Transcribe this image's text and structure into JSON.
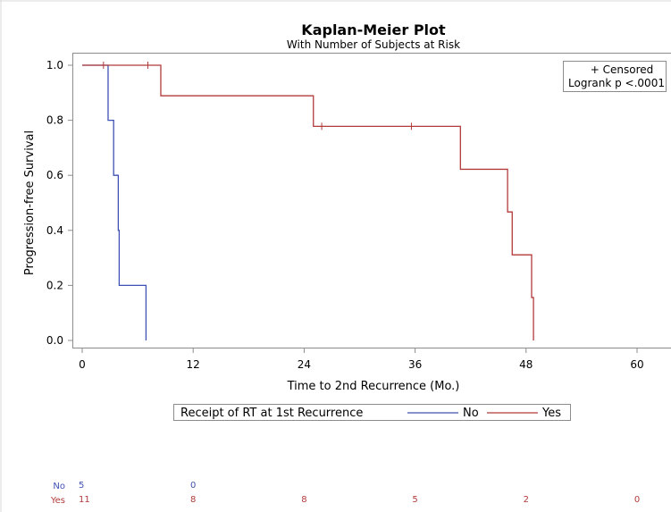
{
  "chart_data": {
    "type": "line",
    "subtype": "kaplan-meier",
    "title": "Kaplan-Meier Plot",
    "subtitle": "With Number of Subjects at Risk",
    "xlabel": "Time to 2nd Recurrence (Mo.)",
    "ylabel": "Progression-free Survival",
    "xlim": [
      0,
      62
    ],
    "ylim": [
      0,
      1.0
    ],
    "x_ticks": [
      0,
      12,
      24,
      36,
      48,
      60
    ],
    "y_ticks": [
      0.0,
      0.2,
      0.4,
      0.6,
      0.8,
      1.0
    ],
    "y_tick_labels": [
      "0.0",
      "0.2",
      "0.4",
      "0.6",
      "0.8",
      "1.0"
    ],
    "grid": false,
    "inset": {
      "line1": "+ Censored",
      "line2": "Logrank p <.0001",
      "position": "top-right"
    },
    "legend": {
      "title": "Receipt of RT at 1st Recurrence",
      "position": "bottom-center"
    },
    "series": [
      {
        "name": "No",
        "color": "#3f51b5",
        "steps": [
          [
            0,
            1.0
          ],
          [
            2.8,
            0.8
          ],
          [
            3.4,
            0.6
          ],
          [
            3.9,
            0.4
          ],
          [
            4.0,
            0.2
          ],
          [
            6.9,
            0.0
          ]
        ],
        "end_time": 6.9,
        "censored": []
      },
      {
        "name": "Yes",
        "color": "#b23a3a",
        "steps": [
          [
            0,
            1.0
          ],
          [
            8.5,
            0.889
          ],
          [
            25.0,
            0.778
          ],
          [
            40.9,
            0.622
          ],
          [
            46.0,
            0.467
          ],
          [
            46.5,
            0.311
          ],
          [
            48.6,
            0.156
          ],
          [
            48.8,
            0.0
          ]
        ],
        "end_time": 48.8,
        "censored": [
          [
            2.3,
            1.0
          ],
          [
            7.1,
            1.0
          ],
          [
            25.9,
            0.778
          ],
          [
            35.6,
            0.778
          ]
        ]
      }
    ],
    "at_risk": {
      "times": [
        0,
        12,
        24,
        36,
        48,
        60
      ],
      "rows": [
        {
          "name": "No",
          "values": [
            "5",
            "0",
            "",
            "",
            "",
            ""
          ]
        },
        {
          "name": "Yes",
          "values": [
            "11",
            "8",
            "8",
            "5",
            "2",
            "0"
          ]
        }
      ]
    }
  }
}
